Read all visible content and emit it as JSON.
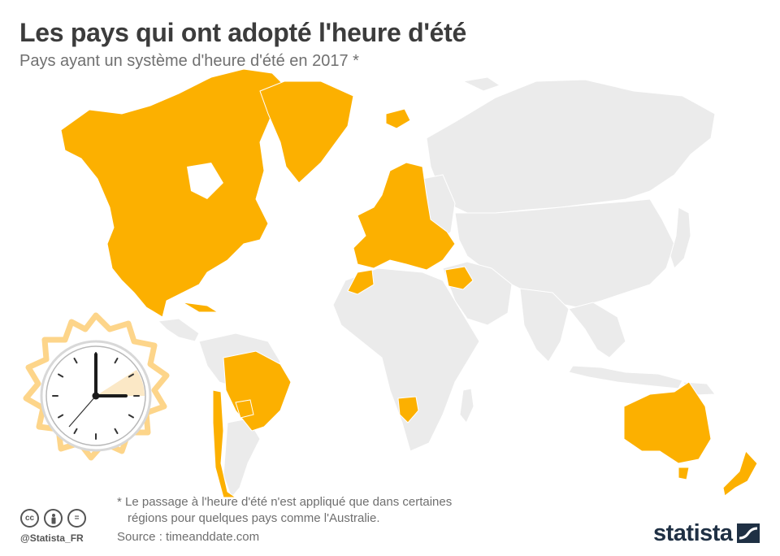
{
  "header": {
    "title": "Les pays qui ont adopté l'heure d'été",
    "subtitle": "Pays ayant un système d'heure d'été en 2017 *"
  },
  "map": {
    "colors": {
      "ocean": "#ffffff",
      "no_dst": "#ebebeb",
      "dst": "#fcb000",
      "border": "#ffffff"
    },
    "dst_regions": [
      "north-america",
      "greenland",
      "iceland",
      "europe",
      "morocco",
      "turkey",
      "syria",
      "israel",
      "brazil",
      "paraguay",
      "chile",
      "namibia",
      "australia",
      "new-zealand",
      "cuba"
    ],
    "illustration": "clock-icon"
  },
  "footer": {
    "note_line1": "* Le passage à l'heure d'été n'est appliqué que dans certaines",
    "note_line2": "régions pour quelques pays comme l'Australie.",
    "source": "Source : timeanddate.com",
    "handle": "@Statista_FR",
    "brand": "statista",
    "license_icons": [
      "cc-icon",
      "person-icon",
      "equals-icon"
    ],
    "license_glyphs": [
      "cc",
      "",
      "="
    ]
  }
}
